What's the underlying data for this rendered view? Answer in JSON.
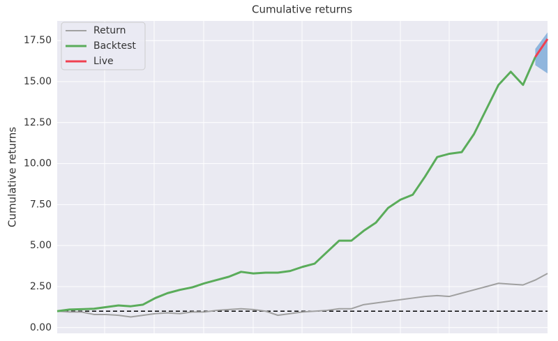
{
  "chart_data": {
    "type": "line",
    "title": "Cumulative returns",
    "ylabel": "Cumulative returns",
    "ylim": [
      -0.35,
      18.7
    ],
    "yticks": [
      {
        "value": 0,
        "label": "0.00"
      },
      {
        "value": 2.5,
        "label": "2.50"
      },
      {
        "value": 5,
        "label": "5.00"
      },
      {
        "value": 7.5,
        "label": "7.50"
      },
      {
        "value": 10,
        "label": "10.00"
      },
      {
        "value": 12.5,
        "label": "12.50"
      },
      {
        "value": 15,
        "label": "15.00"
      },
      {
        "value": 17.5,
        "label": "17.50"
      }
    ],
    "grid": true,
    "legend": "upper left",
    "baseline": 1,
    "series": [
      {
        "name": "Return",
        "color": "#a0a0a0",
        "values": [
          1.0,
          0.95,
          0.95,
          0.8,
          0.8,
          0.75,
          0.65,
          0.75,
          0.85,
          0.9,
          0.85,
          0.95,
          0.95,
          1.05,
          1.1,
          1.15,
          1.1,
          1.0,
          0.75,
          0.85,
          0.95,
          1.0,
          1.05,
          1.15,
          1.15,
          1.4,
          1.5,
          1.6,
          1.7,
          1.8,
          1.9,
          1.95,
          1.9,
          2.1,
          2.3,
          2.5,
          2.7,
          2.65,
          2.6,
          2.9,
          3.3
        ]
      },
      {
        "name": "Backtest",
        "color": "#5aac5a",
        "values": [
          1.0,
          1.1,
          1.12,
          1.15,
          1.25,
          1.35,
          1.3,
          1.4,
          1.8,
          2.1,
          2.3,
          2.45,
          2.7,
          2.9,
          3.1,
          3.4,
          3.3,
          3.35,
          3.35,
          3.45,
          3.7,
          3.9,
          4.6,
          5.3,
          5.3,
          5.9,
          6.4,
          7.3,
          7.8,
          8.1,
          9.2,
          10.4,
          10.6,
          10.7,
          11.8,
          13.3,
          14.8,
          15.6,
          14.8,
          16.5,
          null
        ]
      },
      {
        "name": "Live",
        "color": "#f04050",
        "values": [
          null,
          null,
          null,
          null,
          null,
          null,
          null,
          null,
          null,
          null,
          null,
          null,
          null,
          null,
          null,
          null,
          null,
          null,
          null,
          null,
          null,
          null,
          null,
          null,
          null,
          null,
          null,
          null,
          null,
          null,
          null,
          null,
          null,
          null,
          null,
          null,
          null,
          null,
          null,
          16.5,
          17.6
        ]
      }
    ],
    "cone": {
      "color": "#6a9fd4",
      "lower": [
        null,
        null,
        null,
        null,
        null,
        null,
        null,
        null,
        null,
        null,
        null,
        null,
        null,
        null,
        null,
        null,
        null,
        null,
        null,
        null,
        null,
        null,
        null,
        null,
        null,
        null,
        null,
        null,
        null,
        null,
        null,
        null,
        null,
        null,
        null,
        null,
        null,
        null,
        null,
        16.0,
        15.5
      ],
      "upper": [
        null,
        null,
        null,
        null,
        null,
        null,
        null,
        null,
        null,
        null,
        null,
        null,
        null,
        null,
        null,
        null,
        null,
        null,
        null,
        null,
        null,
        null,
        null,
        null,
        null,
        null,
        null,
        null,
        null,
        null,
        null,
        null,
        null,
        null,
        null,
        null,
        null,
        null,
        null,
        17.0,
        18.0
      ]
    }
  }
}
